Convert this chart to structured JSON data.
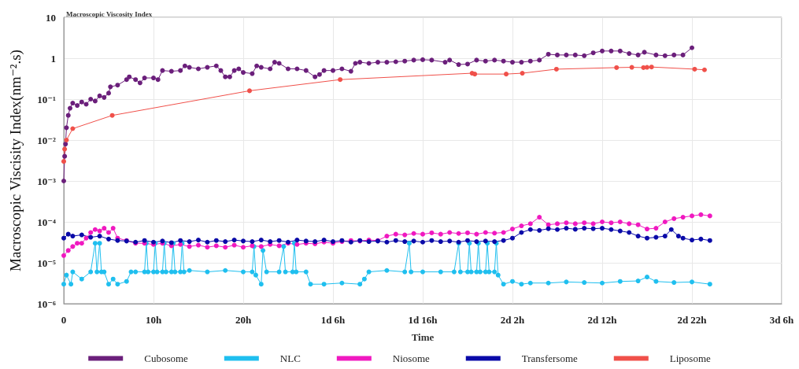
{
  "chart_data": {
    "type": "line",
    "title": "Macroscopic Viscosity Index",
    "xlabel": "Time",
    "ylabel": "Macroscopic Viscisity Index(nm⁻².s)",
    "xlim": [
      0,
      80
    ],
    "xticks": [
      0,
      {
        "value": 10,
        "label": "10h"
      },
      {
        "value": 20,
        "label": "20h"
      },
      {
        "value": 30,
        "label": "1d 6h"
      },
      {
        "value": 40,
        "label": "1d 16h"
      },
      {
        "value": 50,
        "label": "2d 2h"
      },
      {
        "value": 60,
        "label": "2d 12h"
      },
      {
        "value": 70,
        "label": "2d 22h"
      },
      {
        "value": 80,
        "label": "3d 6h"
      }
    ],
    "ylim": [
      1e-06,
      10
    ],
    "yticks": [
      {
        "value": 1e-06,
        "label": "10⁻⁶"
      },
      {
        "value": 1e-05,
        "label": "10⁻⁵"
      },
      {
        "value": 0.0001,
        "label": "10⁻⁴"
      },
      {
        "value": 0.001,
        "label": "10⁻³"
      },
      {
        "value": 0.01,
        "label": "10⁻²"
      },
      {
        "value": 0.1,
        "label": "10⁻¹"
      },
      1,
      10
    ],
    "log": "y",
    "grid": true,
    "legend": "bottom",
    "marker": "circle",
    "line_style": "solid",
    "series": [
      {
        "name": "Cubosome",
        "color": "#6b1f7b",
        "x": [
          0,
          0.1,
          0.2,
          0.3,
          0.5,
          0.7,
          1,
          1.5,
          2,
          2.5,
          3,
          3.5,
          4,
          4.5,
          5,
          5.2,
          6,
          7,
          7.3,
          8,
          8.5,
          9,
          10,
          10.5,
          11,
          12,
          13,
          13.5,
          14,
          15,
          16,
          17,
          17.5,
          18,
          18.5,
          19,
          19.5,
          20,
          21,
          21.5,
          22,
          23,
          23.5,
          24,
          25,
          26,
          27,
          28,
          28.5,
          29,
          30,
          31,
          32,
          32.5,
          33,
          34,
          35,
          36,
          37,
          38,
          39,
          40,
          41,
          42.5,
          43,
          44,
          45,
          46,
          47,
          48,
          49,
          50,
          51,
          52,
          53,
          54,
          55,
          56,
          57,
          58,
          59,
          60,
          61,
          62,
          63,
          64,
          64.7,
          66,
          67,
          68,
          69,
          70
        ],
        "values": [
          0.001,
          0.004,
          0.008,
          0.02,
          0.04,
          0.06,
          0.08,
          0.07,
          0.085,
          0.075,
          0.1,
          0.09,
          0.12,
          0.11,
          0.14,
          0.2,
          0.22,
          0.3,
          0.35,
          0.3,
          0.25,
          0.33,
          0.33,
          0.3,
          0.5,
          0.48,
          0.5,
          0.65,
          0.6,
          0.55,
          0.6,
          0.65,
          0.5,
          0.35,
          0.35,
          0.5,
          0.55,
          0.45,
          0.42,
          0.65,
          0.6,
          0.55,
          0.8,
          0.75,
          0.55,
          0.55,
          0.5,
          0.35,
          0.4,
          0.5,
          0.5,
          0.55,
          0.48,
          0.75,
          0.8,
          0.75,
          0.8,
          0.8,
          0.82,
          0.85,
          0.9,
          0.92,
          0.9,
          0.8,
          0.9,
          0.7,
          0.72,
          0.9,
          0.85,
          0.9,
          0.85,
          0.8,
          0.8,
          0.85,
          0.9,
          1.25,
          1.2,
          1.2,
          1.2,
          1.15,
          1.35,
          1.5,
          1.5,
          1.5,
          1.3,
          1.2,
          1.4,
          1.2,
          1.15,
          1.2,
          1.2,
          1.8
        ]
      },
      {
        "name": "NLC",
        "color": "#1fbfef",
        "x": [
          0,
          0.3,
          0.8,
          1,
          2,
          3,
          3.5,
          3.7,
          4,
          4.2,
          4.5,
          5,
          5.5,
          6,
          7,
          7.5,
          8,
          9,
          9.2,
          9.4,
          10,
          10.2,
          10.4,
          11,
          11.2,
          11.4,
          12,
          12.2,
          12.4,
          13,
          13.2,
          13.4,
          14,
          16,
          18,
          20,
          21,
          21.2,
          21.4,
          22,
          22.2,
          22.6,
          24,
          24.5,
          24.7,
          25.5,
          25.7,
          25.9,
          27,
          27.5,
          29,
          31,
          33,
          33.5,
          34,
          36,
          38,
          38.5,
          38.7,
          40,
          42,
          43.5,
          44,
          44.2,
          45,
          45.2,
          45.4,
          46,
          46.2,
          46.4,
          47,
          47.2,
          47.4,
          48,
          48.2,
          48.4,
          49,
          50,
          51,
          52,
          54,
          56,
          58,
          60,
          62,
          64,
          65,
          66,
          68,
          70,
          72
        ],
        "values": [
          3e-06,
          5e-06,
          3e-06,
          6e-06,
          4e-06,
          6e-06,
          3e-05,
          6e-06,
          3e-05,
          6e-06,
          6e-06,
          3e-06,
          4e-06,
          3e-06,
          3.5e-06,
          6e-06,
          6e-06,
          6e-06,
          3e-05,
          6e-06,
          6e-06,
          3e-05,
          6e-06,
          6e-06,
          3e-05,
          6e-06,
          6e-06,
          3e-05,
          6e-06,
          6e-06,
          3e-05,
          6e-06,
          6.5e-06,
          6e-06,
          6.5e-06,
          6e-06,
          6e-06,
          2.5e-05,
          5e-06,
          3e-06,
          2e-05,
          6e-06,
          6e-06,
          2.5e-05,
          6e-06,
          6e-06,
          3e-05,
          6e-06,
          6e-06,
          3e-06,
          3e-06,
          3.2e-06,
          3e-06,
          4e-06,
          6e-06,
          6.5e-06,
          6e-06,
          3e-05,
          6e-06,
          6e-06,
          6e-06,
          6e-06,
          3e-05,
          6e-06,
          6e-06,
          3e-05,
          6e-06,
          6e-06,
          3e-05,
          6e-06,
          6e-06,
          3e-05,
          6e-06,
          6e-06,
          3e-05,
          5e-06,
          3e-06,
          3.5e-06,
          3e-06,
          3.2e-06,
          3.2e-06,
          3.4e-06,
          3.3e-06,
          3.2e-06,
          3.5e-06,
          3.6e-06,
          4.5e-06,
          3.5e-06,
          3.3e-06,
          3.4e-06,
          3e-06
        ]
      },
      {
        "name": "Niosome",
        "color": "#f019c0",
        "x": [
          0,
          0.5,
          1,
          1.5,
          2,
          2.5,
          3,
          3.5,
          4,
          4.5,
          5,
          5.5,
          6,
          7,
          8,
          9,
          10,
          11,
          12,
          13,
          14,
          15,
          16,
          17,
          18,
          19,
          20,
          21,
          22,
          23,
          24,
          25,
          26,
          27,
          28,
          29,
          30,
          31,
          32,
          33,
          34,
          35,
          36,
          37,
          38,
          39,
          40,
          41,
          42,
          43,
          44,
          45,
          46,
          47,
          48,
          49,
          50,
          51,
          52,
          53,
          54,
          55,
          56,
          57,
          58,
          59,
          60,
          61,
          62,
          63,
          64,
          65,
          66,
          67,
          68,
          69,
          70,
          71,
          72
        ],
        "values": [
          1.5e-05,
          2e-05,
          2.5e-05,
          3e-05,
          3e-05,
          4e-05,
          5.5e-05,
          6.5e-05,
          6e-05,
          7e-05,
          5.5e-05,
          7e-05,
          4e-05,
          3.5e-05,
          3e-05,
          3e-05,
          2.8e-05,
          3e-05,
          2.6e-05,
          2.8e-05,
          2.5e-05,
          2.7e-05,
          2.4e-05,
          2.6e-05,
          2.4e-05,
          2.7e-05,
          2.4e-05,
          2.6e-05,
          2.5e-05,
          2.8e-05,
          2.6e-05,
          3e-05,
          2.8e-05,
          3e-05,
          2.9e-05,
          3.2e-05,
          3e-05,
          3.3e-05,
          3.5e-05,
          3.4e-05,
          3.6e-05,
          3.5e-05,
          4.5e-05,
          5e-05,
          4.8e-05,
          5.2e-05,
          5e-05,
          5.4e-05,
          5e-05,
          5.5e-05,
          5.2e-05,
          5.4e-05,
          5e-05,
          5.5e-05,
          5.3e-05,
          5.5e-05,
          6.7e-05,
          8e-05,
          9e-05,
          0.00013,
          8.5e-05,
          9e-05,
          9.5e-05,
          9e-05,
          9.5e-05,
          9e-05,
          0.0001,
          9.5e-05,
          0.0001,
          9e-05,
          8.5e-05,
          6.7e-05,
          7e-05,
          0.0001,
          0.00012,
          0.00013,
          0.00014,
          0.00015,
          0.00014
        ]
      },
      {
        "name": "Transfersome",
        "color": "#0a0aa8",
        "x": [
          0,
          0.5,
          1,
          2,
          3,
          4,
          5,
          6,
          7,
          8,
          9,
          10,
          11,
          12,
          13,
          14,
          15,
          16,
          17,
          18,
          19,
          20,
          21,
          22,
          23,
          24,
          25,
          26,
          27,
          28,
          29,
          30,
          31,
          32,
          33,
          34,
          35,
          36,
          37,
          38,
          39,
          40,
          41,
          42,
          43,
          44,
          45,
          46,
          47,
          48,
          49,
          50,
          51,
          52,
          53,
          54,
          55,
          56,
          57,
          58,
          59,
          60,
          61,
          62,
          63,
          64,
          65,
          66,
          67,
          67.7,
          68.5,
          69,
          70,
          71,
          72
        ],
        "values": [
          4e-05,
          5e-05,
          4.5e-05,
          4.8e-05,
          4.2e-05,
          4.5e-05,
          3.8e-05,
          3.5e-05,
          3.4e-05,
          3.2e-05,
          3.5e-05,
          3.2e-05,
          3.4e-05,
          3.1e-05,
          3.5e-05,
          3.3e-05,
          3.6e-05,
          3.2e-05,
          3.5e-05,
          3.3e-05,
          3.6e-05,
          3.4e-05,
          3.3e-05,
          3.6e-05,
          3.3e-05,
          3.5e-05,
          3.2e-05,
          3.6e-05,
          3.4e-05,
          3.3e-05,
          3.6e-05,
          3.3e-05,
          3.5e-05,
          3.2e-05,
          3.5e-05,
          3.3e-05,
          3.4e-05,
          3.2e-05,
          3.5e-05,
          3.3e-05,
          3.4e-05,
          3.2e-05,
          3.5e-05,
          3.3e-05,
          3.4e-05,
          3.2e-05,
          3.5e-05,
          3.3e-05,
          3.4e-05,
          3.3e-05,
          3.5e-05,
          4e-05,
          5.5e-05,
          6.5e-05,
          6.2e-05,
          6.8e-05,
          6.5e-05,
          7e-05,
          6.6e-05,
          7e-05,
          6.8e-05,
          7e-05,
          6.5e-05,
          6e-05,
          5.5e-05,
          4.5e-05,
          4e-05,
          4.2e-05,
          4.5e-05,
          6.5e-05,
          4.5e-05,
          4e-05,
          3.6e-05,
          3.8e-05,
          3.5e-05
        ]
      },
      {
        "name": "Liposome",
        "color": "#f0504a",
        "x": [
          0,
          0.1,
          0.3,
          1,
          5.4,
          20.7,
          30.8,
          45.5,
          45.8,
          49.3,
          51.1,
          54.9,
          61.6,
          63.3,
          64.6,
          65,
          65.5,
          70.3,
          71.4
        ],
        "values": [
          0.003,
          0.006,
          0.01,
          0.019,
          0.04,
          0.16,
          0.3,
          0.43,
          0.41,
          0.41,
          0.43,
          0.54,
          0.59,
          0.6,
          0.59,
          0.6,
          0.61,
          0.54,
          0.52
        ]
      }
    ]
  }
}
